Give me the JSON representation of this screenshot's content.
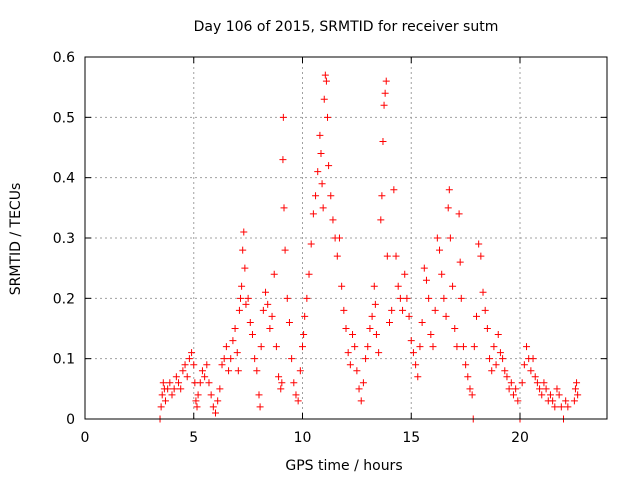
{
  "chart_data": {
    "type": "scatter",
    "title": "Day 106 of 2015, SRMTID for receiver sutm",
    "xlabel": "GPS time / hours",
    "ylabel": "SRMTID / TECUs",
    "xlim": [
      0,
      24
    ],
    "ylim": [
      0,
      0.6
    ],
    "xticks": [
      0,
      5,
      10,
      15,
      20
    ],
    "xtick_labels": [
      "0",
      "5",
      "10",
      "15",
      "20"
    ],
    "yticks": [
      0,
      0.1,
      0.2,
      0.3,
      0.4,
      0.5,
      0.6
    ],
    "ytick_labels": [
      "0",
      "0.1",
      "0.2",
      "0.3",
      "0.4",
      "0.5",
      "0.6"
    ],
    "grid": true,
    "marker": "+",
    "color": "#ff0000",
    "series": [
      {
        "name": "SRMTID",
        "points": [
          [
            3.45,
            0.0
          ],
          [
            3.5,
            0.02
          ],
          [
            3.55,
            0.04
          ],
          [
            3.6,
            0.06
          ],
          [
            3.65,
            0.05
          ],
          [
            3.7,
            0.03
          ],
          [
            3.8,
            0.05
          ],
          [
            3.9,
            0.06
          ],
          [
            4.0,
            0.04
          ],
          [
            4.1,
            0.05
          ],
          [
            4.2,
            0.07
          ],
          [
            4.3,
            0.06
          ],
          [
            4.4,
            0.05
          ],
          [
            4.5,
            0.08
          ],
          [
            4.6,
            0.09
          ],
          [
            4.7,
            0.07
          ],
          [
            4.8,
            0.1
          ],
          [
            4.9,
            0.11
          ],
          [
            5.0,
            0.09
          ],
          [
            5.05,
            0.06
          ],
          [
            5.1,
            0.03
          ],
          [
            5.15,
            0.02
          ],
          [
            5.2,
            0.04
          ],
          [
            5.3,
            0.06
          ],
          [
            5.4,
            0.08
          ],
          [
            5.5,
            0.07
          ],
          [
            5.6,
            0.09
          ],
          [
            5.7,
            0.06
          ],
          [
            5.8,
            0.04
          ],
          [
            5.9,
            0.02
          ],
          [
            6.0,
            0.01
          ],
          [
            6.1,
            0.03
          ],
          [
            6.2,
            0.05
          ],
          [
            6.3,
            0.09
          ],
          [
            6.4,
            0.1
          ],
          [
            6.5,
            0.12
          ],
          [
            6.6,
            0.08
          ],
          [
            6.7,
            0.1
          ],
          [
            6.8,
            0.13
          ],
          [
            6.9,
            0.15
          ],
          [
            7.0,
            0.11
          ],
          [
            7.05,
            0.08
          ],
          [
            7.1,
            0.18
          ],
          [
            7.15,
            0.2
          ],
          [
            7.2,
            0.22
          ],
          [
            7.25,
            0.28
          ],
          [
            7.3,
            0.31
          ],
          [
            7.35,
            0.25
          ],
          [
            7.4,
            0.19
          ],
          [
            7.5,
            0.2
          ],
          [
            7.6,
            0.16
          ],
          [
            7.7,
            0.14
          ],
          [
            7.8,
            0.1
          ],
          [
            7.9,
            0.08
          ],
          [
            8.0,
            0.04
          ],
          [
            8.05,
            0.02
          ],
          [
            8.1,
            0.12
          ],
          [
            8.2,
            0.18
          ],
          [
            8.3,
            0.21
          ],
          [
            8.4,
            0.19
          ],
          [
            8.5,
            0.15
          ],
          [
            8.6,
            0.17
          ],
          [
            8.7,
            0.24
          ],
          [
            8.8,
            0.12
          ],
          [
            8.9,
            0.07
          ],
          [
            9.0,
            0.05
          ],
          [
            9.05,
            0.06
          ],
          [
            9.1,
            0.43
          ],
          [
            9.12,
            0.5
          ],
          [
            9.15,
            0.35
          ],
          [
            9.2,
            0.28
          ],
          [
            9.3,
            0.2
          ],
          [
            9.4,
            0.16
          ],
          [
            9.5,
            0.1
          ],
          [
            9.6,
            0.06
          ],
          [
            9.7,
            0.04
          ],
          [
            9.8,
            0.03
          ],
          [
            9.9,
            0.08
          ],
          [
            10.0,
            0.12
          ],
          [
            10.05,
            0.14
          ],
          [
            10.1,
            0.17
          ],
          [
            10.2,
            0.2
          ],
          [
            10.3,
            0.24
          ],
          [
            10.4,
            0.29
          ],
          [
            10.5,
            0.34
          ],
          [
            10.6,
            0.37
          ],
          [
            10.7,
            0.41
          ],
          [
            10.8,
            0.47
          ],
          [
            10.85,
            0.44
          ],
          [
            10.9,
            0.39
          ],
          [
            10.95,
            0.35
          ],
          [
            11.0,
            0.53
          ],
          [
            11.05,
            0.57
          ],
          [
            11.1,
            0.56
          ],
          [
            11.15,
            0.5
          ],
          [
            11.2,
            0.42
          ],
          [
            11.3,
            0.37
          ],
          [
            11.4,
            0.33
          ],
          [
            11.5,
            0.3
          ],
          [
            11.6,
            0.27
          ],
          [
            11.7,
            0.3
          ],
          [
            11.8,
            0.22
          ],
          [
            11.9,
            0.18
          ],
          [
            12.0,
            0.15
          ],
          [
            12.1,
            0.11
          ],
          [
            12.2,
            0.09
          ],
          [
            12.3,
            0.14
          ],
          [
            12.4,
            0.12
          ],
          [
            12.5,
            0.08
          ],
          [
            12.6,
            0.05
          ],
          [
            12.7,
            0.03
          ],
          [
            12.8,
            0.06
          ],
          [
            12.9,
            0.1
          ],
          [
            13.0,
            0.12
          ],
          [
            13.1,
            0.15
          ],
          [
            13.2,
            0.17
          ],
          [
            13.3,
            0.22
          ],
          [
            13.35,
            0.19
          ],
          [
            13.4,
            0.14
          ],
          [
            13.5,
            0.11
          ],
          [
            13.6,
            0.33
          ],
          [
            13.65,
            0.37
          ],
          [
            13.7,
            0.46
          ],
          [
            13.75,
            0.52
          ],
          [
            13.8,
            0.54
          ],
          [
            13.85,
            0.56
          ],
          [
            13.9,
            0.27
          ],
          [
            14.0,
            0.16
          ],
          [
            14.1,
            0.18
          ],
          [
            14.2,
            0.38
          ],
          [
            14.3,
            0.27
          ],
          [
            14.4,
            0.22
          ],
          [
            14.5,
            0.2
          ],
          [
            14.6,
            0.18
          ],
          [
            14.7,
            0.24
          ],
          [
            14.8,
            0.2
          ],
          [
            14.9,
            0.17
          ],
          [
            15.0,
            0.13
          ],
          [
            15.1,
            0.11
          ],
          [
            15.2,
            0.09
          ],
          [
            15.3,
            0.07
          ],
          [
            15.4,
            0.12
          ],
          [
            15.5,
            0.16
          ],
          [
            15.6,
            0.25
          ],
          [
            15.7,
            0.23
          ],
          [
            15.8,
            0.2
          ],
          [
            15.9,
            0.14
          ],
          [
            16.0,
            0.12
          ],
          [
            16.1,
            0.18
          ],
          [
            16.2,
            0.3
          ],
          [
            16.3,
            0.28
          ],
          [
            16.4,
            0.24
          ],
          [
            16.5,
            0.2
          ],
          [
            16.6,
            0.17
          ],
          [
            16.7,
            0.35
          ],
          [
            16.75,
            0.38
          ],
          [
            16.8,
            0.3
          ],
          [
            16.9,
            0.22
          ],
          [
            17.0,
            0.15
          ],
          [
            17.1,
            0.12
          ],
          [
            17.2,
            0.34
          ],
          [
            17.25,
            0.26
          ],
          [
            17.3,
            0.2
          ],
          [
            17.4,
            0.12
          ],
          [
            17.5,
            0.09
          ],
          [
            17.6,
            0.07
          ],
          [
            17.7,
            0.05
          ],
          [
            17.8,
            0.04
          ],
          [
            17.85,
            0.0
          ],
          [
            17.9,
            0.12
          ],
          [
            18.0,
            0.17
          ],
          [
            18.1,
            0.29
          ],
          [
            18.2,
            0.27
          ],
          [
            18.3,
            0.21
          ],
          [
            18.4,
            0.18
          ],
          [
            18.5,
            0.15
          ],
          [
            18.6,
            0.1
          ],
          [
            18.7,
            0.08
          ],
          [
            18.8,
            0.12
          ],
          [
            18.9,
            0.09
          ],
          [
            19.0,
            0.14
          ],
          [
            19.1,
            0.11
          ],
          [
            19.2,
            0.1
          ],
          [
            19.3,
            0.08
          ],
          [
            19.4,
            0.07
          ],
          [
            19.5,
            0.05
          ],
          [
            19.6,
            0.06
          ],
          [
            19.7,
            0.04
          ],
          [
            19.8,
            0.05
          ],
          [
            19.9,
            0.03
          ],
          [
            20.0,
            0.0
          ],
          [
            20.1,
            0.06
          ],
          [
            20.2,
            0.09
          ],
          [
            20.3,
            0.12
          ],
          [
            20.4,
            0.1
          ],
          [
            20.5,
            0.08
          ],
          [
            20.6,
            0.1
          ],
          [
            20.7,
            0.07
          ],
          [
            20.8,
            0.06
          ],
          [
            20.9,
            0.05
          ],
          [
            21.0,
            0.04
          ],
          [
            21.1,
            0.06
          ],
          [
            21.2,
            0.05
          ],
          [
            21.3,
            0.03
          ],
          [
            21.4,
            0.04
          ],
          [
            21.5,
            0.03
          ],
          [
            21.6,
            0.02
          ],
          [
            21.7,
            0.05
          ],
          [
            21.8,
            0.04
          ],
          [
            21.9,
            0.02
          ],
          [
            22.0,
            0.0
          ],
          [
            22.1,
            0.03
          ],
          [
            22.2,
            0.02
          ],
          [
            22.5,
            0.03
          ],
          [
            22.55,
            0.05
          ],
          [
            22.6,
            0.06
          ],
          [
            22.65,
            0.04
          ]
        ]
      }
    ]
  }
}
